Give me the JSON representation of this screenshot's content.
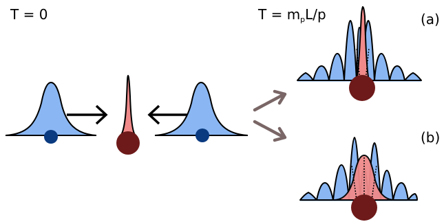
{
  "labels": {
    "left_time": "T = 0",
    "right_time_prefix": "T = m",
    "right_time_subscript": "p",
    "right_time_suffix": "L/p",
    "panel_a": "(a)",
    "panel_b": "(b)"
  },
  "colors": {
    "blue_fill": "#8ab7f3",
    "blue_dot": "#0a3a80",
    "red_fill": "#f08a8a",
    "dark_red": "#6e1a1a",
    "arrow_gray": "#7a6666",
    "stroke": "#000000"
  },
  "icons": {
    "move_arrow": "right-arrow-icon",
    "move_arrow_left": "left-arrow-icon",
    "branch_arrow": "chevron-icon"
  }
}
